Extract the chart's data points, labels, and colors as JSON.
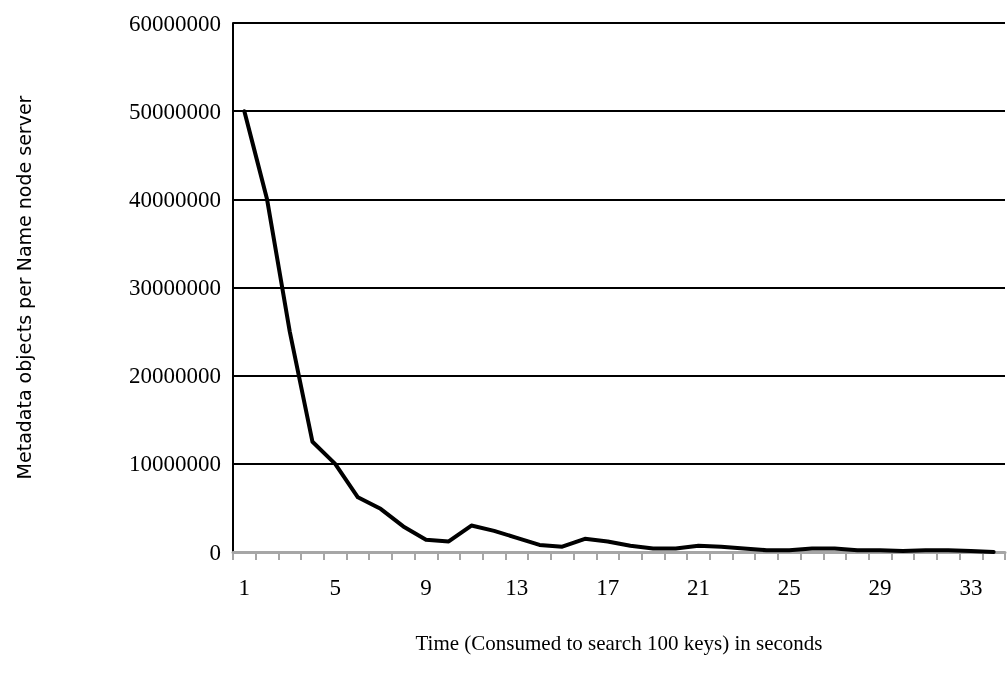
{
  "chart_data": {
    "type": "line",
    "xlabel": "Time (Consumed to search 100 keys) in seconds",
    "ylabel": "Metadata objects per Name node server",
    "categories": [
      "1",
      null,
      null,
      null,
      "5",
      null,
      null,
      null,
      "9",
      null,
      null,
      null,
      "13",
      null,
      null,
      null,
      "17",
      null,
      null,
      null,
      "21",
      null,
      null,
      null,
      "25",
      null,
      null,
      null,
      "29",
      null,
      null,
      null,
      "33",
      null
    ],
    "series": [
      {
        "color": "#000000",
        "values": [
          50000000,
          40000000,
          25000000,
          12500000,
          10000000,
          6200000,
          4900000,
          2900000,
          1400000,
          1200000,
          3000000,
          2400000,
          1600000,
          800000,
          600000,
          1500000,
          1200000,
          700000,
          400000,
          400000,
          700000,
          600000,
          400000,
          200000,
          200000,
          400000,
          400000,
          200000,
          200000,
          100000,
          200000,
          200000,
          100000,
          0
        ]
      }
    ],
    "ylim": [
      0,
      60000000
    ],
    "yticks": [
      0,
      10000000,
      20000000,
      30000000,
      40000000,
      50000000,
      60000000
    ],
    "grid": "y",
    "marker": "none",
    "line_style": "solid"
  }
}
